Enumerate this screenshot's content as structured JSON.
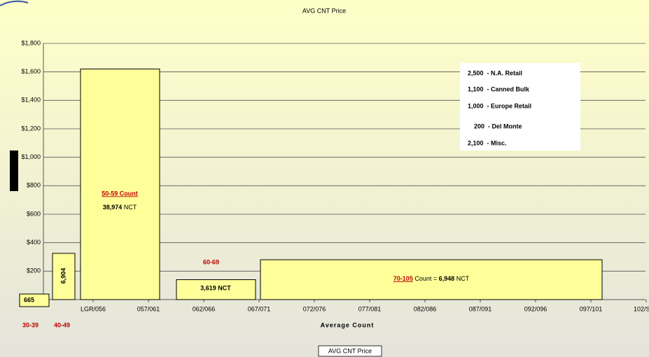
{
  "chart_data": {
    "type": "bar",
    "title": "AVG CNT Price",
    "x_label": "Average Count",
    "categories": [
      "LGR/056",
      "057/061",
      "062/066",
      "067/071",
      "072/076",
      "077/081",
      "082/086",
      "087/091",
      "092/096",
      "097/101",
      "102/SML"
    ],
    "ylim": [
      0,
      1800
    ],
    "yticks": [
      {
        "value": 200,
        "label": "$200"
      },
      {
        "value": 400,
        "label": "$400"
      },
      {
        "value": 600,
        "label": "$600"
      },
      {
        "value": 800,
        "label": "$800"
      },
      {
        "value": 1000,
        "label": "$1,000"
      },
      {
        "value": 1200,
        "label": "$1,200"
      },
      {
        "value": 1400,
        "label": "$1,400"
      },
      {
        "value": 1600,
        "label": "$1,600"
      },
      {
        "value": 1800,
        "label": "$1,800"
      }
    ],
    "grid": true,
    "color": "#ffff99",
    "boxes": [
      {
        "value": 325,
        "label": "6,904"
      },
      {
        "value": 1620,
        "title": "50-59 Count",
        "label": "38,974",
        "unit": "NCT"
      },
      {
        "value": 140,
        "label": "3,619 NCT"
      },
      {
        "value": 280,
        "title": "70-105",
        "prefix": "Count =",
        "label": "6,948",
        "unit": "NCT"
      }
    ],
    "below_box": "665",
    "range_labels": [
      "30-39",
      "40-49",
      "60-69"
    ],
    "notes": [
      "2,500  - N.A. Retail",
      "1,100  - Canned Bulk",
      "1,000  - Europe Retail",
      "200  - Del Monte",
      "2,100  - Misc."
    ],
    "legend": "AVG CNT Price"
  }
}
